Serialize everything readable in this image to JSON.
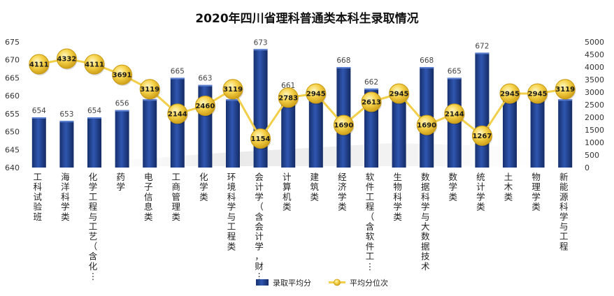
{
  "chart_data": {
    "type": "bar+line",
    "title": "2020年四川省理科普通类本科生录取情况",
    "categories": [
      "工科试验班",
      "海洋科学类",
      "化学工程与工艺（含化…",
      "药学",
      "电子信息类",
      "工商管理类",
      "化学类",
      "环境科学与工程类",
      "会计学（含会计学，财…",
      "计算机类",
      "建筑类",
      "经济学类",
      "软件工程（含软件工…",
      "生物科学类",
      "数据科学与大数据技术",
      "数学类",
      "统计学类",
      "土木类",
      "物理学类",
      "新能源科学与工程"
    ],
    "series": [
      {
        "name": "录取平均分",
        "type": "bar",
        "axis": "left",
        "color": "#1f3f8c",
        "values": [
          654,
          653,
          654,
          656,
          659,
          665,
          663,
          659,
          673,
          661,
          660,
          668,
          662,
          660,
          668,
          665,
          672,
          660,
          660,
          659
        ]
      },
      {
        "name": "平均分位次",
        "type": "line",
        "axis": "right",
        "color": "#f2cf4a",
        "values": [
          4111,
          4332,
          4111,
          3691,
          3119,
          2144,
          2460,
          3119,
          1154,
          2783,
          2945,
          1690,
          2613,
          2945,
          1690,
          2144,
          1267,
          2945,
          2945,
          3119
        ]
      }
    ],
    "y_left": {
      "min": 640,
      "max": 675,
      "step": 5
    },
    "y_right": {
      "min": 0,
      "max": 5000,
      "step": 500
    },
    "legend": "bottom",
    "grid": false
  }
}
